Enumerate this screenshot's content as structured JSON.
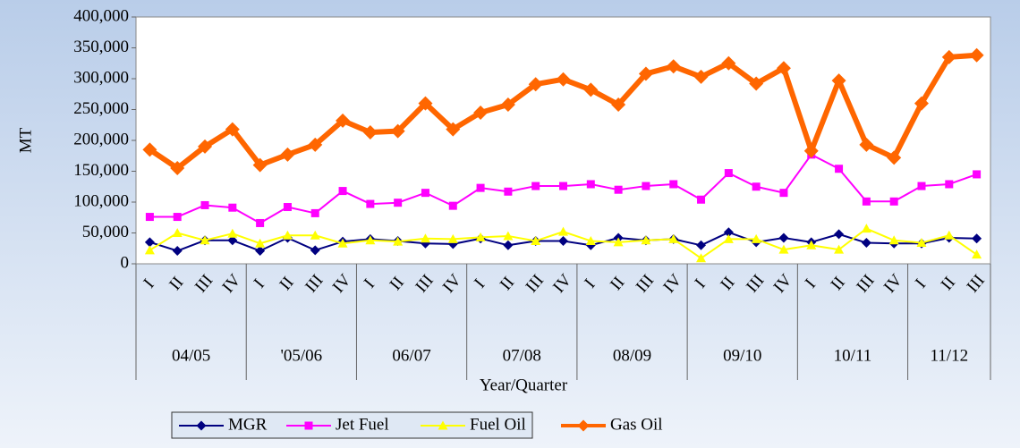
{
  "chart_data": {
    "type": "line",
    "y_label": "MT",
    "x_label": "Year/Quarter",
    "groups": [
      {
        "name": "04/05",
        "categories": [
          "I",
          "II",
          "III",
          "IV"
        ]
      },
      {
        "name": "'05/06",
        "categories": [
          "I",
          "II",
          "III",
          "IV"
        ]
      },
      {
        "name": "06/07",
        "categories": [
          "I",
          "II",
          "III",
          "IV"
        ]
      },
      {
        "name": "07/08",
        "categories": [
          "I",
          "II",
          "III",
          "IV"
        ]
      },
      {
        "name": "08/09",
        "categories": [
          "I",
          "II",
          "III",
          "IV"
        ]
      },
      {
        "name": "09/10",
        "categories": [
          "I",
          "II",
          "III",
          "IV"
        ]
      },
      {
        "name": "10/11",
        "categories": [
          "I",
          "II",
          "III",
          "IV"
        ]
      },
      {
        "name": "11/12",
        "categories": [
          "I",
          "II",
          "III"
        ]
      }
    ],
    "ylim": [
      0,
      400000
    ],
    "yticks": [
      0,
      {
        "value": 50000,
        "label": "50,000"
      },
      {
        "value": 100000,
        "label": "100,000"
      },
      {
        "value": 150000,
        "label": "150,000"
      },
      {
        "value": 200000,
        "label": "200,000"
      },
      {
        "value": 250000,
        "label": "250,000"
      },
      {
        "value": 300000,
        "label": "300,000"
      },
      {
        "value": 350000,
        "label": "350,000"
      },
      {
        "value": 400000,
        "label": "400,000"
      }
    ],
    "legend": "bottom-left",
    "series": [
      {
        "name": "MGR",
        "color": "#000080",
        "marker": "diamond",
        "values": [
          35000,
          21000,
          38000,
          38000,
          21000,
          42000,
          22000,
          36000,
          40000,
          37000,
          33000,
          32000,
          41000,
          30000,
          37000,
          37000,
          30000,
          42000,
          38000,
          40000,
          30000,
          51000,
          35000,
          42000,
          35000,
          48000,
          34000,
          33000,
          33000,
          42000,
          41000
        ]
      },
      {
        "name": "Jet Fuel",
        "color": "#ff00ff",
        "marker": "square",
        "values": [
          76000,
          76000,
          95000,
          91000,
          66000,
          92000,
          82000,
          118000,
          97000,
          99000,
          115000,
          94000,
          123000,
          117000,
          126000,
          126000,
          129000,
          120000,
          126000,
          129000,
          104000,
          147000,
          125000,
          115000,
          177000,
          154000,
          101000,
          101000,
          126000,
          129000,
          145000
        ]
      },
      {
        "name": "Fuel Oil",
        "color": "#ffff00",
        "marker": "triangle",
        "values": [
          22000,
          50000,
          38000,
          49000,
          33000,
          46000,
          46000,
          33000,
          38000,
          36000,
          41000,
          40000,
          43000,
          45000,
          37000,
          52000,
          37000,
          35000,
          38000,
          40000,
          9000,
          40000,
          40000,
          23000,
          30000,
          23000,
          57000,
          38000,
          34000,
          46000,
          15000
        ]
      },
      {
        "name": "Gas Oil",
        "color": "#ff6600",
        "marker": "diamond",
        "width": 6,
        "values": [
          185000,
          155000,
          190000,
          218000,
          160000,
          177000,
          193000,
          232000,
          213000,
          215000,
          260000,
          218000,
          245000,
          258000,
          291000,
          299000,
          282000,
          258000,
          308000,
          320000,
          303000,
          325000,
          292000,
          317000,
          183000,
          297000,
          193000,
          172000,
          260000,
          335000,
          338000
        ]
      }
    ]
  }
}
